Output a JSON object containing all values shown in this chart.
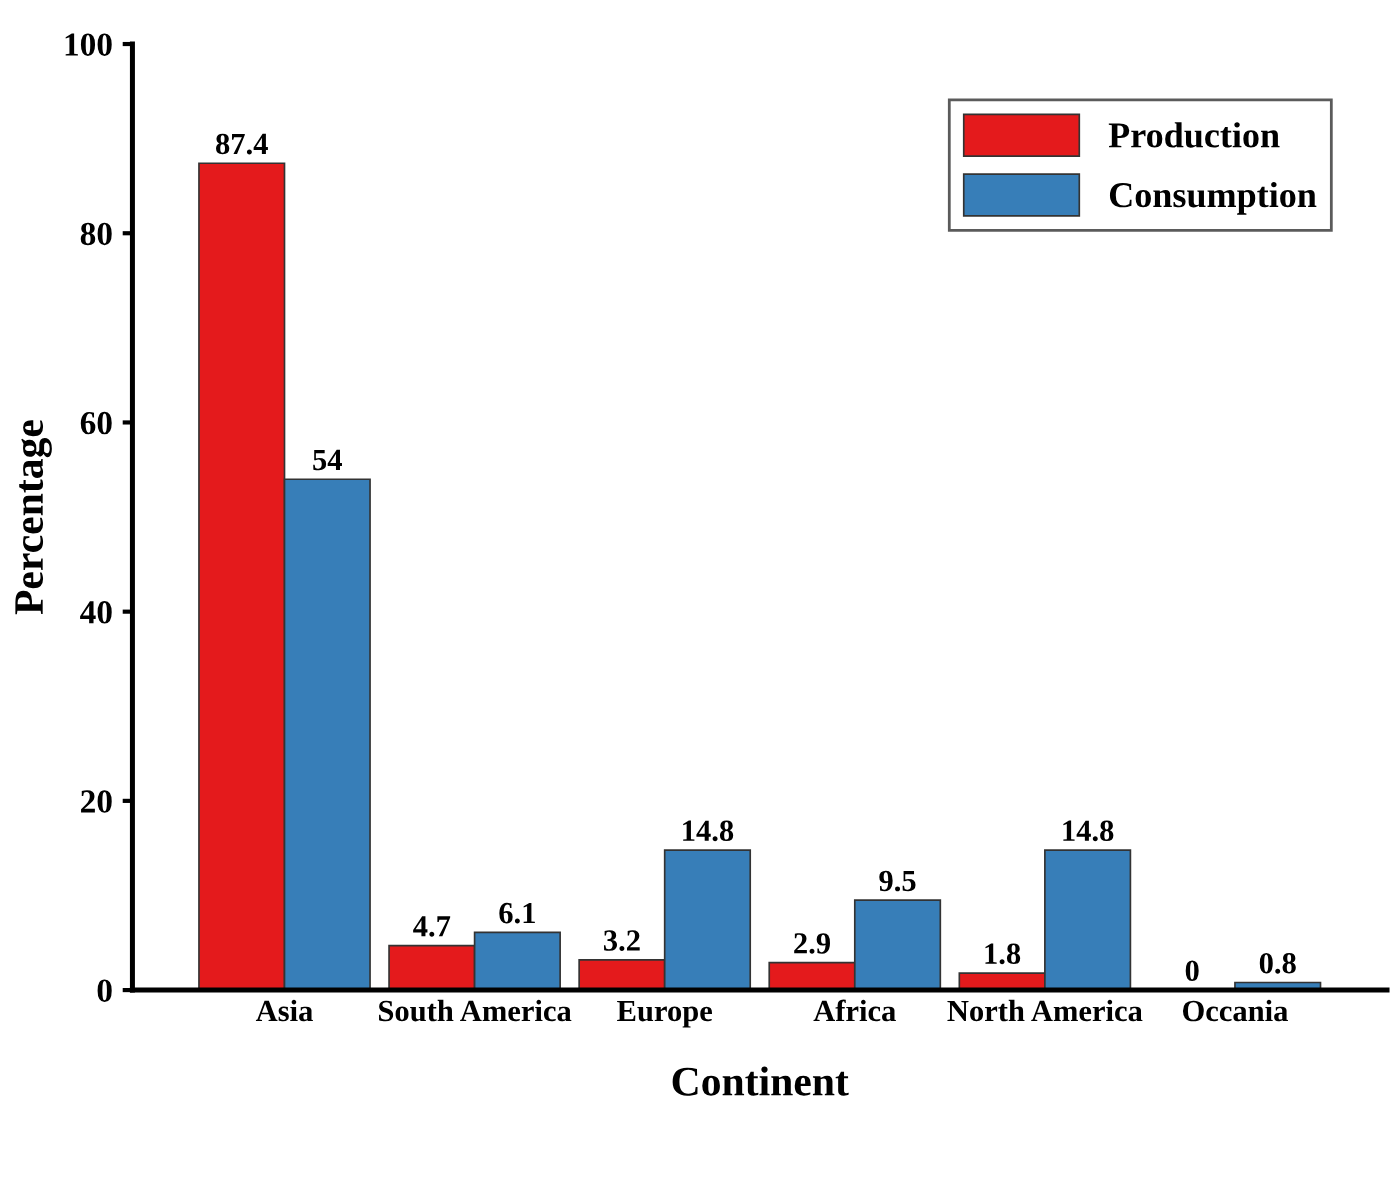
{
  "chart_data": {
    "type": "bar",
    "xlabel": "Continent",
    "ylabel": "Percentage",
    "categories": [
      "Asia",
      "South America",
      "Europe",
      "Africa",
      "North America",
      "Occania"
    ],
    "series": [
      {
        "name": "Production",
        "color": "#e41a1c",
        "values": [
          87.4,
          4.7,
          3.2,
          2.9,
          1.8,
          0
        ]
      },
      {
        "name": "Consumption",
        "color": "#377eb8",
        "values": [
          54,
          6.1,
          14.8,
          9.5,
          14.8,
          0.8
        ]
      }
    ],
    "ylim": [
      0,
      100
    ],
    "yticks": [
      0,
      20,
      40,
      60,
      80,
      100
    ],
    "data_labels": true,
    "legend": "top right",
    "grid": false
  }
}
